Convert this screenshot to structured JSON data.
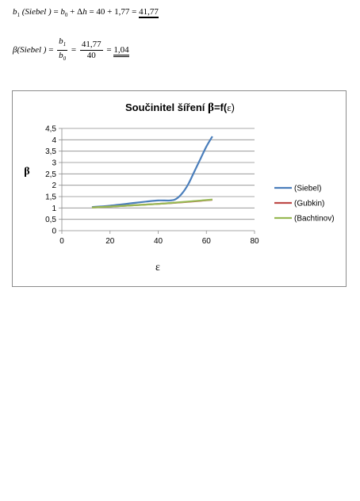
{
  "formulas": {
    "line1": {
      "b1": "b",
      "sub1": "1",
      "arg": "(Siebel )",
      "eq1": "= ",
      "b0": "b",
      "sub0": "0",
      "plus": " + Δ",
      "h": "h",
      "rest": " = 40 + 1,77 = ",
      "result": "41,77"
    },
    "line2": {
      "beta": "β",
      "arg": "(Siebel )",
      "eq1": "= ",
      "num_b": "b",
      "num_sub": "1",
      "den_b": "b",
      "den_sub": "0",
      "eq2": " = ",
      "num_val": "41,77",
      "den_val": "40",
      "eq3": " = ",
      "result": "1,04"
    }
  },
  "chart_data": {
    "type": "line",
    "title_text": "Součinitel šíření ",
    "title_beta": "β",
    "title_suffix": "=f(",
    "title_eps": "ε",
    "title_end": ")",
    "xlabel": "ε",
    "ylabel": "β",
    "xlim": [
      0,
      80
    ],
    "ylim": [
      0,
      4.5
    ],
    "x_ticks": [
      0,
      20,
      40,
      60,
      80
    ],
    "x_tick_labels": [
      "0",
      "20",
      "40",
      "60",
      "80"
    ],
    "y_ticks": [
      0,
      0.5,
      1,
      1.5,
      2,
      2.5,
      3,
      3.5,
      4,
      4.5
    ],
    "y_tick_labels": [
      "0",
      "0,5",
      "1",
      "1,5",
      "2",
      "2,5",
      "3",
      "3,5",
      "4",
      "4,5"
    ],
    "grid": "horizontal",
    "legend_position": "right",
    "series": [
      {
        "name": "(Siebel)",
        "color": "#4a7ebb",
        "x": [
          12.5,
          20,
          30,
          35,
          40,
          45,
          47.5,
          50,
          52.5,
          55,
          57.5,
          60,
          62.5
        ],
        "y": [
          1.04,
          1.1,
          1.22,
          1.28,
          1.33,
          1.33,
          1.4,
          1.65,
          2.05,
          2.6,
          3.15,
          3.7,
          4.15
        ]
      },
      {
        "name": "(Gubkin)",
        "color": "#be4b48",
        "x": [
          12.5,
          20,
          30,
          40,
          50,
          62.5
        ],
        "y": [
          1.02,
          1.06,
          1.12,
          1.18,
          1.25,
          1.36
        ]
      },
      {
        "name": "(Bachtinov)",
        "color": "#98b954",
        "x": [
          12.5,
          20,
          30,
          40,
          50,
          62.5
        ],
        "y": [
          1.02,
          1.06,
          1.12,
          1.18,
          1.26,
          1.37
        ]
      }
    ]
  }
}
